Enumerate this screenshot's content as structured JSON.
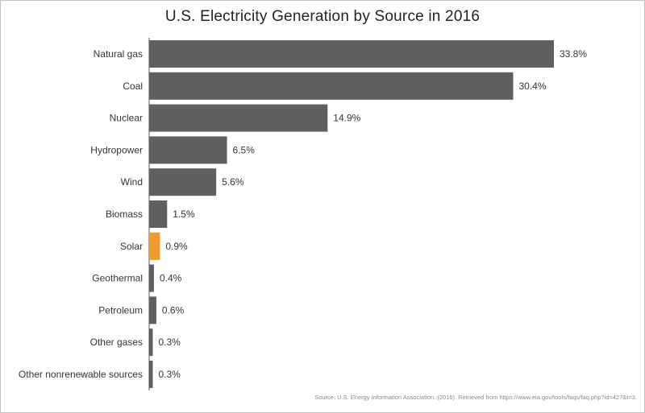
{
  "chart_data": {
    "type": "bar",
    "orientation": "horizontal",
    "title": "U.S. Electricity Generation by Source in 2016",
    "source": "Source: U.S. Energy Information Association. (2016). Retrieved from https://www.eia.gov/tools/faqs/faq.php?id=427&t=3.",
    "categories": [
      "Natural gas",
      "Coal",
      "Nuclear",
      "Hydropower",
      "Wind",
      "Biomass",
      "Solar",
      "Geothermal",
      "Petroleum",
      "Other gases",
      "Other nonrenewable sources"
    ],
    "values": [
      33.8,
      30.4,
      14.9,
      6.5,
      5.6,
      1.5,
      0.9,
      0.4,
      0.6,
      0.3,
      0.3
    ],
    "value_labels": [
      "33.8%",
      "30.4%",
      "14.9%",
      "6.5%",
      "5.6%",
      "1.5%",
      "0.9%",
      "0.4%",
      "0.6%",
      "0.3%",
      "0.3%"
    ],
    "xlim": [
      0,
      33.8
    ],
    "grid": false,
    "legend": "none",
    "colors": {
      "bar": "#5f5f5f",
      "highlight": "#f39a2d",
      "highlight_category": "Solar",
      "axis": "#555555"
    }
  }
}
